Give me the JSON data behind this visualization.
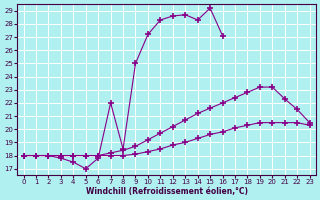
{
  "xlabel": "Windchill (Refroidissement éolien,°C)",
  "bg_color": "#b0f0f0",
  "line_color": "#880088",
  "grid_color": "#ffffff",
  "ylim": [
    16.5,
    29.5
  ],
  "xlim": [
    -0.5,
    23.5
  ],
  "yticks": [
    17,
    18,
    19,
    20,
    21,
    22,
    23,
    24,
    25,
    26,
    27,
    28,
    29
  ],
  "xticks": [
    0,
    1,
    2,
    3,
    4,
    5,
    6,
    7,
    8,
    9,
    10,
    11,
    12,
    13,
    14,
    15,
    16,
    17,
    18,
    19,
    20,
    21,
    22,
    23
  ],
  "line1_x": [
    0,
    1,
    2,
    3,
    4,
    5,
    6,
    7,
    8,
    9,
    10,
    11,
    12,
    13,
    14,
    15,
    16
  ],
  "line1_y": [
    18.0,
    18.0,
    18.0,
    17.8,
    17.5,
    17.0,
    17.8,
    22.0,
    18.5,
    25.0,
    27.2,
    28.3,
    28.6,
    28.7,
    28.3,
    29.2,
    27.1
  ],
  "line2_x": [
    0,
    1,
    2,
    3,
    4,
    5,
    6,
    7,
    8,
    9,
    10,
    11,
    12,
    13,
    14,
    15,
    16,
    17,
    18,
    19,
    20,
    21,
    22,
    23
  ],
  "line2_y": [
    18.0,
    18.0,
    18.0,
    18.0,
    18.0,
    18.0,
    18.0,
    18.2,
    18.4,
    18.7,
    19.2,
    19.7,
    20.2,
    20.7,
    21.2,
    21.6,
    22.0,
    22.4,
    22.8,
    23.2,
    23.2,
    22.3,
    21.5,
    20.5
  ],
  "line3_x": [
    0,
    1,
    2,
    3,
    4,
    5,
    6,
    7,
    8,
    9,
    10,
    11,
    12,
    13,
    14,
    15,
    16,
    17,
    18,
    19,
    20,
    21,
    22,
    23
  ],
  "line3_y": [
    18.0,
    18.0,
    18.0,
    18.0,
    18.0,
    18.0,
    18.0,
    18.0,
    18.0,
    18.1,
    18.3,
    18.5,
    18.8,
    19.0,
    19.3,
    19.6,
    19.8,
    20.1,
    20.3,
    20.5,
    20.5,
    20.5,
    20.5,
    20.3
  ]
}
